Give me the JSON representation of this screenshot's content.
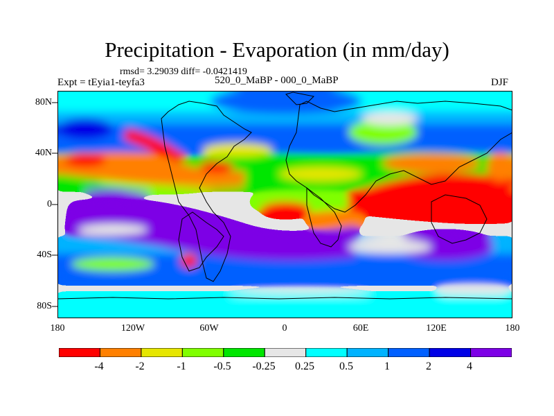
{
  "title": "Precipitation - Evaporation (in mm/day)",
  "stats": "rmsd= 3.29039  diff= -0.0421419",
  "experiment": "Expt = tEyia1-teyfa3",
  "period": "520_0_MaBP - 000_0_MaBP",
  "season": "DJF",
  "map": {
    "y_ticks": [
      "80N",
      "40N",
      "0",
      "40S",
      "80S"
    ],
    "x_ticks": [
      "180",
      "120W",
      "60W",
      "0",
      "60E",
      "120E",
      "180"
    ],
    "lat_range": [
      -90,
      90
    ],
    "lon_range": [
      -180,
      180
    ]
  },
  "colorbar": {
    "colors": [
      "#ff0000",
      "#ff8000",
      "#e6e600",
      "#80ff00",
      "#00e600",
      "#e6e6e6",
      "#00ffff",
      "#00b3ff",
      "#0060ff",
      "#0000e6",
      "#7d00e6"
    ],
    "labels": [
      "-4",
      "-2",
      "-1",
      "-0.5",
      "-0.25",
      "0.25",
      "0.5",
      "1",
      "2",
      "4"
    ]
  }
}
